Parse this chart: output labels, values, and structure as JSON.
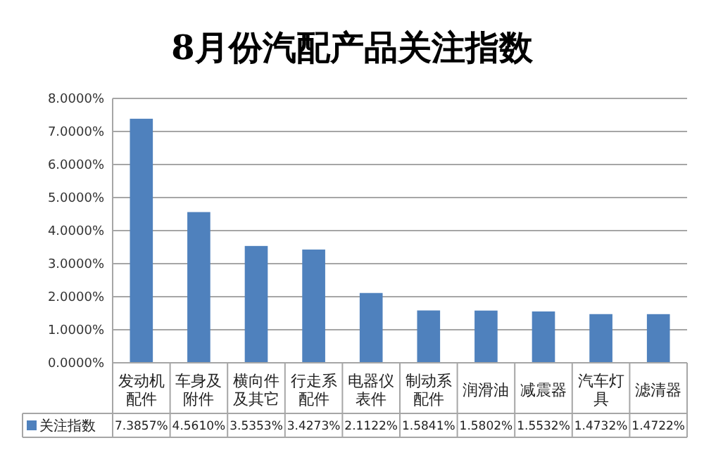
{
  "chart_data": {
    "type": "bar",
    "title": "8月份汽配产品关注指数",
    "categories": [
      "发动机配件",
      "车身及附件",
      "横向件及其它",
      "行走系配件",
      "电器仪表件",
      "制动系配件",
      "润滑油",
      "减震器",
      "汽车灯具",
      "滤清器"
    ],
    "series": [
      {
        "name": "关注指数",
        "color": "#4f81bd",
        "values": [
          7.3857,
          4.561,
          3.5353,
          3.4273,
          2.1122,
          1.5841,
          1.5802,
          1.5532,
          1.4732,
          1.4722
        ],
        "value_labels": [
          "7.3857%",
          "4.5610%",
          "3.5353%",
          "3.4273%",
          "2.1122%",
          "1.5841%",
          "1.5802%",
          "1.5532%",
          "1.4732%",
          "1.4722%"
        ]
      }
    ],
    "ylim": [
      0,
      8
    ],
    "yticks": [
      {
        "value": 0,
        "label": "0.0000%"
      },
      {
        "value": 1,
        "label": "1.0000%"
      },
      {
        "value": 2,
        "label": "2.0000%"
      },
      {
        "value": 3,
        "label": "3.0000%"
      },
      {
        "value": 4,
        "label": "4.0000%"
      },
      {
        "value": 5,
        "label": "5.0000%"
      },
      {
        "value": 6,
        "label": "6.0000%"
      },
      {
        "value": 7,
        "label": "7.0000%"
      },
      {
        "value": 8,
        "label": "8.0000%"
      }
    ],
    "grid": "y",
    "legend": "bottom left",
    "data_labels": true
  }
}
